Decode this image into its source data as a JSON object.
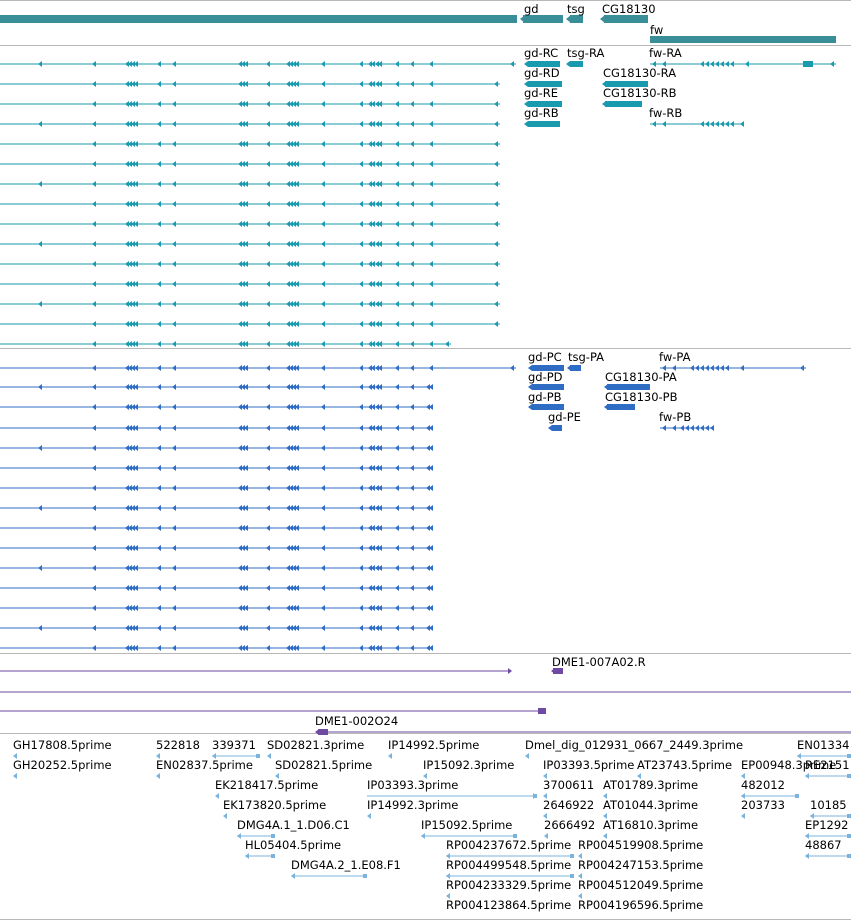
{
  "colors": {
    "gene": "#3a8e98",
    "mrna_track": "#1a9aae",
    "protein_track": "#2f6cc4",
    "clone_track": "#6e4aa2",
    "est_track": "#7ab4dc",
    "separator": "#b8b8b8"
  },
  "tracks": {
    "genes": {
      "labels": [
        "gd",
        "tsg",
        "CG18130",
        "fw"
      ]
    },
    "mrna": {
      "labels": [
        "gd-RC",
        "tsg-RA",
        "fw-RA",
        "gd-RD",
        "CG18130-RA",
        "gd-RE",
        "CG18130-RB",
        "gd-RB",
        "fw-RB"
      ]
    },
    "protein": {
      "labels": [
        "gd-PC",
        "tsg-PA",
        "fw-PA",
        "gd-PD",
        "CG18130-PA",
        "gd-PB",
        "CG18130-PB",
        "gd-PE",
        "fw-PB"
      ]
    },
    "clones": {
      "labels": [
        "DME1-007A02.R",
        "DME1-002O24"
      ]
    },
    "ests": {
      "labels": [
        "GH17808.5prime",
        "522818",
        "339371",
        "SD02821.3prime",
        "IP14992.5prime",
        "Dmel_dig_012931_0667_2449.3prime",
        "EN01334",
        "GH20252.5prime",
        "EN02837.5prime",
        "SD02821.5prime",
        "IP15092.3prime",
        "IP03393.5prime",
        "AT23743.5prime",
        "EP00948.3prime",
        "RE2151",
        "EK218417.5prime",
        "IP03393.3prime",
        "3700611",
        "AT01789.3prime",
        "482012",
        "EK173820.5prime",
        "IP14992.3prime",
        "2646922",
        "AT01044.3prime",
        "203733",
        "10185",
        "DMG4A.1_1.D06.C1",
        "IP15092.5prime",
        "2666492",
        "AT16810.3prime",
        "EP1292",
        "HL05404.5prime",
        "RP004237672.5prime",
        "RP004519908.5prime",
        "48867",
        "DMG4A.2_1.E08.F1",
        "RP004499548.5prime",
        "RP004247153.5prime",
        "RP004233329.5prime",
        "RP004512049.5prime",
        "RP004123864.5prime",
        "RP004196596.5prime"
      ]
    }
  }
}
